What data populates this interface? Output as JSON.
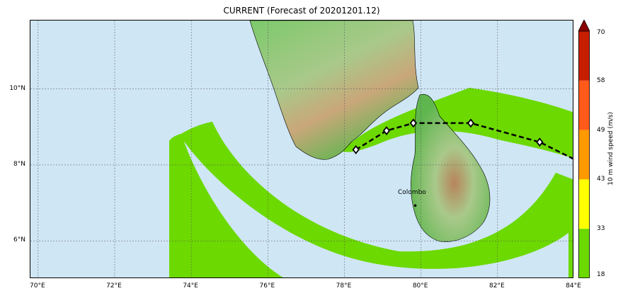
{
  "title": "CURRENT (Forecast of 20201201.12)",
  "map": {
    "lon_ticks": [
      "70°E",
      "72°E",
      "74°E",
      "76°E",
      "78°E",
      "80°E",
      "82°E",
      "84°E"
    ],
    "lat_ticks": [
      "10°N",
      "8°N",
      "6°N"
    ],
    "lon_values": [
      70,
      72,
      74,
      76,
      78,
      80,
      82,
      84
    ],
    "lat_values": [
      10,
      8,
      6
    ],
    "extent": {
      "lon_min": 69.8,
      "lon_max": 84.0,
      "lat_min": 5.0,
      "lat_max": 11.8
    },
    "ocean_color": "#cfe6f5",
    "wind_color": "#6cd900",
    "city": {
      "name": "Colombo",
      "lon": 79.85,
      "lat": 6.93
    },
    "track": [
      {
        "lon": 78.3,
        "lat": 8.4
      },
      {
        "lon": 79.1,
        "lat": 8.9
      },
      {
        "lon": 79.8,
        "lat": 9.1
      },
      {
        "lon": 81.3,
        "lat": 9.1
      },
      {
        "lon": 83.1,
        "lat": 8.6
      },
      {
        "lon": 84.0,
        "lat": 8.15
      }
    ]
  },
  "colorbar": {
    "label": "10 m wind speed (m/s)",
    "ticks": [
      "18",
      "33",
      "43",
      "49",
      "58",
      "70"
    ],
    "bounds": [
      18,
      33,
      43,
      49,
      58,
      70
    ],
    "colors": [
      "#6cd900",
      "#ffff00",
      "#ff9900",
      "#ff5a1a",
      "#c81e00"
    ],
    "extend_color": "#8b0000"
  }
}
